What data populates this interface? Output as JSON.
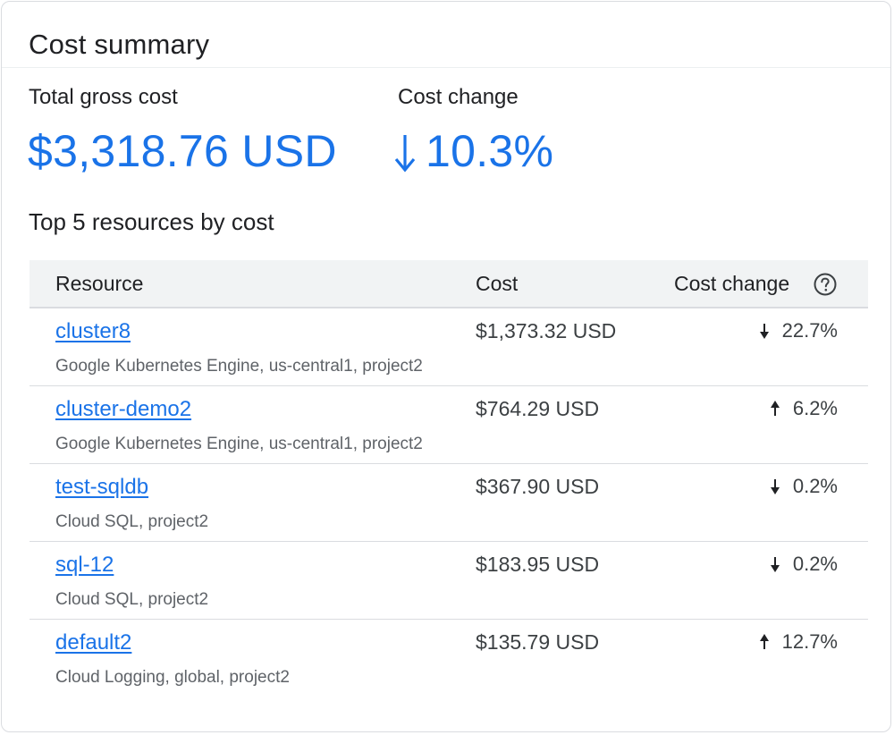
{
  "card": {
    "title": "Cost summary"
  },
  "metrics": {
    "total_label": "Total gross cost",
    "total_value": "$3,318.76 USD",
    "change_label": "Cost change",
    "change_value": "10.3%",
    "change_direction": "down"
  },
  "section_title": "Top 5 resources by cost",
  "table": {
    "headers": {
      "resource": "Resource",
      "cost": "Cost",
      "change": "Cost change"
    },
    "help_icon": "help-circle-icon",
    "rows": [
      {
        "name": "cluster8",
        "details": "Google Kubernetes Engine, us-central1, project2",
        "cost": "$1,373.32 USD",
        "change": "22.7%",
        "direction": "down"
      },
      {
        "name": "cluster-demo2",
        "details": "Google Kubernetes Engine, us-central1, project2",
        "cost": "$764.29 USD",
        "change": "6.2%",
        "direction": "up"
      },
      {
        "name": "test-sqldb",
        "details": "Cloud SQL, project2",
        "cost": "$367.90 USD",
        "change": "0.2%",
        "direction": "down"
      },
      {
        "name": "sql-12",
        "details": "Cloud SQL, project2",
        "cost": "$183.95 USD",
        "change": "0.2%",
        "direction": "down"
      },
      {
        "name": "default2",
        "details": "Cloud Logging, global, project2",
        "cost": "$135.79 USD",
        "change": "12.7%",
        "direction": "up"
      }
    ]
  },
  "colors": {
    "accent": "#1a73e8",
    "header_bg": "#f1f3f4",
    "border": "#dadce0",
    "muted_text": "#5f6368"
  }
}
